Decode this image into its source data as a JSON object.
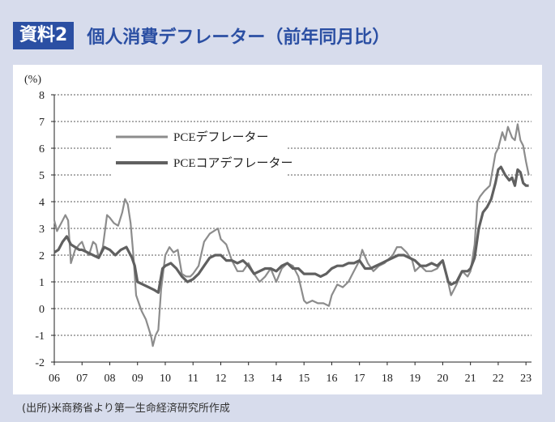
{
  "header": {
    "badge": "資料2",
    "title": "個人消費デフレーター（前年同月比）"
  },
  "source": "(出所)米商務省より第一生命経済研究所作成",
  "chart_data": {
    "type": "line",
    "title": "個人消費デフレーター（前年同月比）",
    "unit_label": "(%)",
    "ylim": [
      -2,
      8
    ],
    "yticks": [
      "8",
      "7",
      "6",
      "5",
      "4",
      "3",
      "2",
      "1",
      "0",
      "-1",
      "-2"
    ],
    "xticks": [
      "06",
      "07",
      "08",
      "09",
      "10",
      "11",
      "12",
      "13",
      "14",
      "15",
      "16",
      "17",
      "18",
      "19",
      "20",
      "21",
      "22",
      "23"
    ],
    "xlim": [
      2006.0,
      2023.2
    ],
    "grid": true,
    "legend_position": "top-left",
    "series": [
      {
        "name": "PCEデフレーター",
        "color": "#8c8c8c",
        "x": [
          2006.0,
          2006.1,
          2006.25,
          2006.4,
          2006.5,
          2006.6,
          2006.75,
          2006.9,
          2007.0,
          2007.1,
          2007.25,
          2007.4,
          2007.5,
          2007.6,
          2007.75,
          2007.9,
          2008.0,
          2008.15,
          2008.3,
          2008.45,
          2008.55,
          2008.65,
          2008.75,
          2008.85,
          2008.95,
          2009.05,
          2009.15,
          2009.3,
          2009.45,
          2009.5,
          2009.55,
          2009.65,
          2009.75,
          2009.85,
          2010.0,
          2010.15,
          2010.3,
          2010.45,
          2010.6,
          2010.75,
          2010.9,
          2011.0,
          2011.2,
          2011.4,
          2011.6,
          2011.75,
          2011.9,
          2012.0,
          2012.2,
          2012.4,
          2012.6,
          2012.8,
          2013.0,
          2013.2,
          2013.4,
          2013.6,
          2013.8,
          2014.0,
          2014.2,
          2014.4,
          2014.6,
          2014.8,
          2015.0,
          2015.1,
          2015.3,
          2015.5,
          2015.7,
          2015.9,
          2016.0,
          2016.2,
          2016.4,
          2016.6,
          2016.8,
          2017.0,
          2017.1,
          2017.3,
          2017.5,
          2017.7,
          2017.9,
          2018.0,
          2018.2,
          2018.35,
          2018.5,
          2018.7,
          2018.9,
          2019.0,
          2019.2,
          2019.4,
          2019.6,
          2019.8,
          2020.0,
          2020.15,
          2020.3,
          2020.5,
          2020.7,
          2020.9,
          2021.0,
          2021.15,
          2021.25,
          2021.35,
          2021.5,
          2021.7,
          2021.9,
          2022.0,
          2022.15,
          2022.25,
          2022.35,
          2022.5,
          2022.6,
          2022.7,
          2022.8,
          2022.9,
          2023.0,
          2023.1
        ],
        "values": [
          3.3,
          2.9,
          3.2,
          3.5,
          3.3,
          1.7,
          2.2,
          2.4,
          2.5,
          2.2,
          2.0,
          2.5,
          2.4,
          1.9,
          2.3,
          3.5,
          3.4,
          3.2,
          3.1,
          3.6,
          4.1,
          3.9,
          3.2,
          2.0,
          0.5,
          0.2,
          -0.1,
          -0.4,
          -0.9,
          -1.1,
          -1.4,
          -1.0,
          -0.8,
          0.7,
          2.0,
          2.3,
          2.1,
          2.2,
          1.3,
          1.2,
          1.2,
          1.3,
          1.6,
          2.5,
          2.8,
          2.9,
          3.0,
          2.6,
          2.4,
          1.8,
          1.4,
          1.4,
          1.7,
          1.3,
          1.0,
          1.2,
          1.5,
          1.0,
          1.5,
          1.7,
          1.6,
          1.2,
          0.3,
          0.2,
          0.3,
          0.2,
          0.2,
          0.1,
          0.5,
          0.9,
          0.8,
          1.0,
          1.4,
          1.8,
          2.2,
          1.7,
          1.4,
          1.6,
          1.7,
          1.8,
          2.0,
          2.3,
          2.3,
          2.1,
          1.8,
          1.4,
          1.6,
          1.4,
          1.4,
          1.5,
          1.8,
          1.2,
          0.5,
          0.9,
          1.4,
          1.2,
          1.4,
          2.4,
          4.0,
          4.2,
          4.4,
          4.6,
          5.8,
          6.0,
          6.6,
          6.3,
          6.8,
          6.4,
          6.3,
          6.9,
          6.3,
          6.1,
          5.5,
          5.0
        ],
        "show_markers": false
      },
      {
        "name": "PCEコアデフレーター",
        "color": "#606060",
        "x": [
          2006.0,
          2006.15,
          2006.3,
          2006.45,
          2006.6,
          2006.75,
          2006.9,
          2007.0,
          2007.2,
          2007.4,
          2007.6,
          2007.8,
          2008.0,
          2008.2,
          2008.4,
          2008.6,
          2008.8,
          2008.9,
          2009.0,
          2009.2,
          2009.4,
          2009.6,
          2009.75,
          2009.9,
          2010.0,
          2010.2,
          2010.4,
          2010.6,
          2010.8,
          2011.0,
          2011.2,
          2011.4,
          2011.6,
          2011.8,
          2012.0,
          2012.2,
          2012.4,
          2012.6,
          2012.8,
          2013.0,
          2013.2,
          2013.4,
          2013.6,
          2013.8,
          2014.0,
          2014.2,
          2014.4,
          2014.6,
          2014.8,
          2015.0,
          2015.2,
          2015.4,
          2015.6,
          2015.8,
          2016.0,
          2016.2,
          2016.4,
          2016.6,
          2016.8,
          2017.0,
          2017.2,
          2017.4,
          2017.6,
          2017.8,
          2018.0,
          2018.2,
          2018.4,
          2018.6,
          2018.8,
          2019.0,
          2019.2,
          2019.4,
          2019.6,
          2019.8,
          2020.0,
          2020.2,
          2020.3,
          2020.5,
          2020.7,
          2020.9,
          2021.0,
          2021.15,
          2021.3,
          2021.45,
          2021.6,
          2021.75,
          2021.9,
          2022.0,
          2022.1,
          2022.25,
          2022.4,
          2022.5,
          2022.6,
          2022.7,
          2022.8,
          2022.9,
          2023.0,
          2023.1
        ],
        "values": [
          2.1,
          2.2,
          2.5,
          2.7,
          2.4,
          2.3,
          2.2,
          2.2,
          2.1,
          2.0,
          1.9,
          2.3,
          2.2,
          2.0,
          2.2,
          2.3,
          1.9,
          1.6,
          1.0,
          0.9,
          0.8,
          0.7,
          0.6,
          1.5,
          1.6,
          1.7,
          1.5,
          1.2,
          1.0,
          1.1,
          1.3,
          1.6,
          1.9,
          2.0,
          2.0,
          1.8,
          1.8,
          1.7,
          1.8,
          1.6,
          1.3,
          1.4,
          1.5,
          1.5,
          1.4,
          1.6,
          1.7,
          1.5,
          1.5,
          1.3,
          1.3,
          1.3,
          1.2,
          1.3,
          1.5,
          1.6,
          1.6,
          1.7,
          1.7,
          1.8,
          1.5,
          1.5,
          1.6,
          1.7,
          1.8,
          1.9,
          2.0,
          2.0,
          1.9,
          1.8,
          1.6,
          1.6,
          1.7,
          1.6,
          1.8,
          1.0,
          0.9,
          1.0,
          1.4,
          1.4,
          1.5,
          1.9,
          3.0,
          3.6,
          3.8,
          4.1,
          4.7,
          5.2,
          5.3,
          5.0,
          4.8,
          4.9,
          4.6,
          5.2,
          5.1,
          4.7,
          4.6,
          4.6
        ],
        "show_markers": false
      }
    ]
  }
}
